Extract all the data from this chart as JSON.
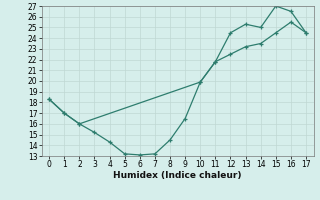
{
  "line1_x": [
    0,
    1,
    2,
    3,
    4,
    5,
    6,
    7,
    8,
    9,
    10,
    11,
    12,
    13,
    14,
    15,
    16,
    17
  ],
  "line1_y": [
    18.3,
    17.0,
    16.0,
    15.2,
    14.3,
    13.2,
    13.1,
    13.2,
    14.5,
    16.5,
    19.9,
    21.8,
    24.5,
    25.3,
    25.0,
    27.0,
    26.5,
    24.5
  ],
  "line2_x": [
    0,
    1,
    2,
    10,
    11,
    12,
    13,
    14,
    15,
    16,
    17
  ],
  "line2_y": [
    18.3,
    17.0,
    16.0,
    19.9,
    21.8,
    22.5,
    23.2,
    23.5,
    24.5,
    25.5,
    24.5
  ],
  "color": "#2e7d6e",
  "bg_color": "#d6eeeb",
  "grid_color": "#c0d8d4",
  "xlabel": "Humidex (Indice chaleur)",
  "xlim_min": -0.5,
  "xlim_max": 17.5,
  "ylim_min": 13,
  "ylim_max": 27,
  "xticks": [
    0,
    1,
    2,
    3,
    4,
    5,
    6,
    7,
    8,
    9,
    10,
    11,
    12,
    13,
    14,
    15,
    16,
    17
  ],
  "yticks": [
    13,
    14,
    15,
    16,
    17,
    18,
    19,
    20,
    21,
    22,
    23,
    24,
    25,
    26,
    27
  ],
  "tick_labelsize": 5.5,
  "xlabel_fontsize": 6.5,
  "linewidth": 0.9,
  "markersize": 3.5
}
